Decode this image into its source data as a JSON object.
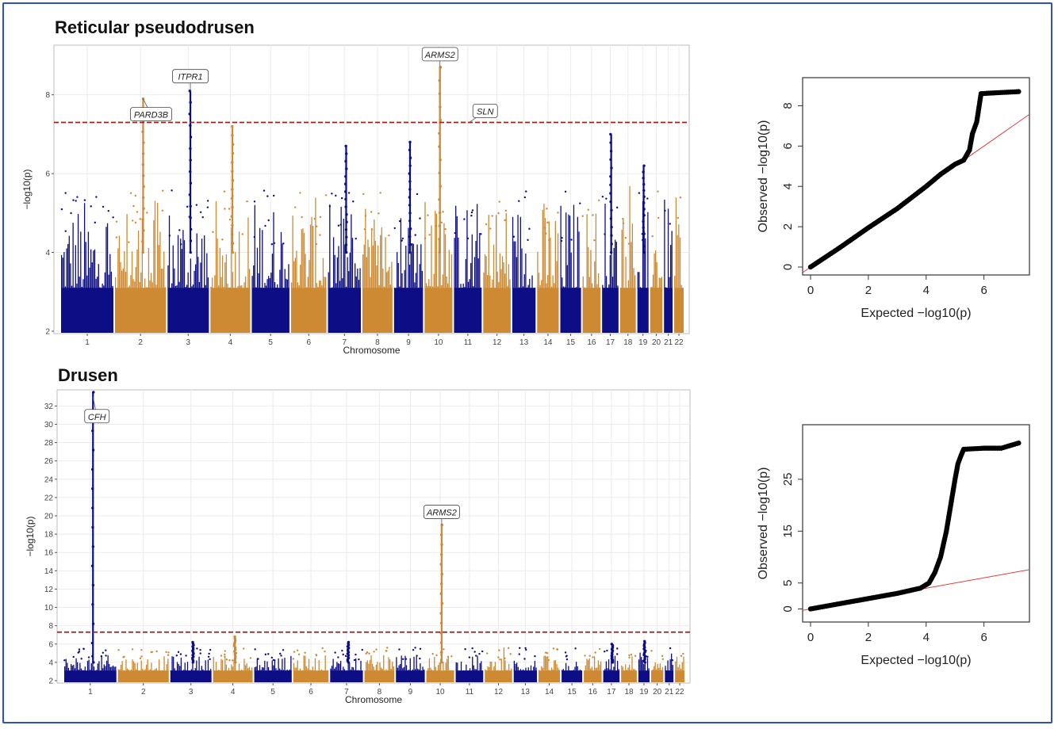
{
  "colors": {
    "blue": "#0d0d85",
    "orange": "#cd8a32",
    "threshold": "#a41c1c",
    "frame": "#2d4fc8",
    "qq_line": "#e33b3b"
  },
  "panels": {
    "rpd": {
      "title": "Reticular pseudodrusen"
    },
    "drusen": {
      "title": "Drusen"
    }
  },
  "chart_data": [
    {
      "type": "scatter",
      "subtype": "manhattan",
      "title": "Reticular pseudodrusen",
      "xlabel": "Chromosome",
      "ylabel": "−log10(p)",
      "ylim": [
        2,
        9.2
      ],
      "yticks": [
        2,
        4,
        6,
        8
      ],
      "threshold": 7.3,
      "chromosomes": [
        "1",
        "2",
        "3",
        "4",
        "5",
        "6",
        "7",
        "8",
        "9",
        "10",
        "11",
        "12",
        "13",
        "14",
        "15",
        "16",
        "17",
        "18",
        "19",
        "20",
        "21",
        "22"
      ],
      "annotations": [
        {
          "label": "ITPR1",
          "chromosome": "3",
          "value": 8.1
        },
        {
          "label": "PARD3B",
          "chromosome": "2",
          "value": 7.9
        },
        {
          "label": "ARMS2",
          "chromosome": "10",
          "value": 8.7
        },
        {
          "label": "SLN",
          "chromosome": "11",
          "value": 7.3
        }
      ],
      "peaks": [
        {
          "chromosome": "10",
          "value": 8.7
        },
        {
          "chromosome": "3",
          "value": 8.1
        },
        {
          "chromosome": "2",
          "value": 7.9
        },
        {
          "chromosome": "4",
          "value": 7.2
        },
        {
          "chromosome": "17",
          "value": 7.0
        },
        {
          "chromosome": "7",
          "value": 6.7
        },
        {
          "chromosome": "9",
          "value": 6.8
        },
        {
          "chromosome": "19",
          "value": 6.2
        }
      ]
    },
    {
      "type": "scatter",
      "subtype": "qq",
      "xlabel": "Expected −log10(p)",
      "ylabel": "Observed −log10(p)",
      "xlim": [
        0,
        7.3
      ],
      "ylim": [
        0,
        9
      ],
      "xticks": [
        0,
        2,
        4,
        6
      ],
      "yticks": [
        0,
        2,
        4,
        6,
        8
      ],
      "points": [
        [
          0,
          0
        ],
        [
          1,
          0.95
        ],
        [
          2,
          1.95
        ],
        [
          3,
          2.9
        ],
        [
          4,
          4.0
        ],
        [
          4.5,
          4.6
        ],
        [
          5,
          5.1
        ],
        [
          5.3,
          5.3
        ],
        [
          5.5,
          5.8
        ],
        [
          5.6,
          6.6
        ],
        [
          5.75,
          7.2
        ],
        [
          5.9,
          8.6
        ],
        [
          6.5,
          8.65
        ],
        [
          7.2,
          8.7
        ]
      ]
    },
    {
      "type": "scatter",
      "subtype": "manhattan",
      "title": "Drusen",
      "xlabel": "Chromosome",
      "ylabel": "−log10(p)",
      "ylim": [
        2,
        33.5
      ],
      "yticks": [
        2,
        4,
        6,
        8,
        10,
        12,
        14,
        16,
        18,
        20,
        22,
        24,
        26,
        28,
        30,
        32
      ],
      "threshold": 7.3,
      "chromosomes": [
        "1",
        "2",
        "3",
        "4",
        "5",
        "6",
        "7",
        "8",
        "9",
        "10",
        "11",
        "12",
        "13",
        "14",
        "15",
        "16",
        "17",
        "18",
        "19",
        "20",
        "21",
        "22"
      ],
      "annotations": [
        {
          "label": "CFH",
          "chromosome": "1",
          "value": 33
        },
        {
          "label": "ARMS2",
          "chromosome": "10",
          "value": 19
        }
      ],
      "peaks": [
        {
          "chromosome": "1",
          "value": 33.5
        },
        {
          "chromosome": "10",
          "value": 19
        },
        {
          "chromosome": "4",
          "value": 6.8
        },
        {
          "chromosome": "3",
          "value": 6.2
        },
        {
          "chromosome": "7",
          "value": 6.2
        },
        {
          "chromosome": "19",
          "value": 6.3
        },
        {
          "chromosome": "17",
          "value": 6.0
        }
      ]
    },
    {
      "type": "scatter",
      "subtype": "qq",
      "xlabel": "Expected −log10(p)",
      "ylabel": "Observed −log10(p)",
      "xlim": [
        0,
        7.3
      ],
      "ylim": [
        -1,
        34
      ],
      "xticks": [
        0,
        2,
        4,
        6
      ],
      "yticks": [
        0,
        5,
        15,
        25
      ],
      "points": [
        [
          0,
          0
        ],
        [
          1,
          1
        ],
        [
          2,
          2
        ],
        [
          3,
          3
        ],
        [
          3.8,
          4
        ],
        [
          4.1,
          5
        ],
        [
          4.3,
          7
        ],
        [
          4.5,
          10
        ],
        [
          4.7,
          15
        ],
        [
          4.85,
          20
        ],
        [
          5.0,
          25
        ],
        [
          5.1,
          28
        ],
        [
          5.2,
          29.5
        ],
        [
          5.3,
          30.8
        ],
        [
          6.0,
          31
        ],
        [
          6.6,
          31
        ],
        [
          7.2,
          32
        ]
      ]
    }
  ]
}
